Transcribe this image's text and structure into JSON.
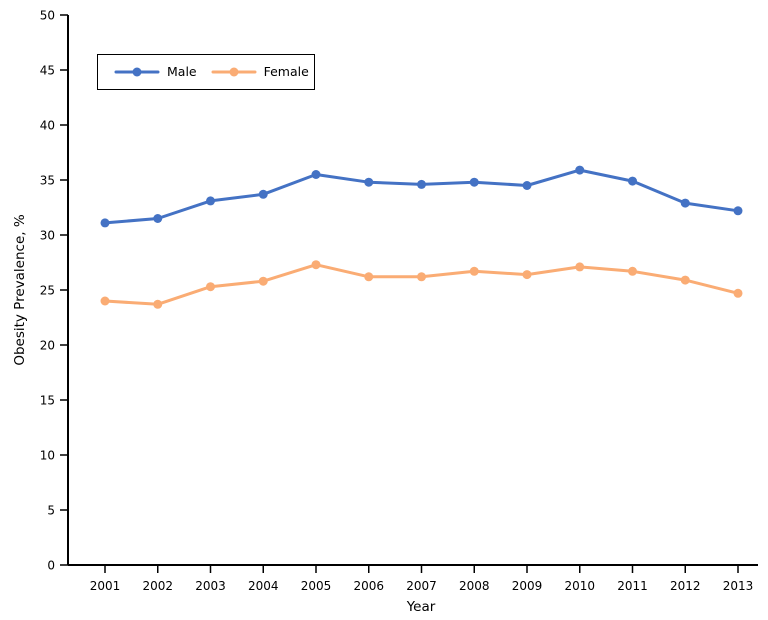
{
  "chart_data": {
    "type": "line",
    "title": "",
    "xlabel": "Year",
    "ylabel": "Obesity Prevalence, %",
    "ylim": [
      0,
      50
    ],
    "ytick_step": 5,
    "grid": false,
    "legend_position": "top-left",
    "categories": [
      "2001",
      "2002",
      "2003",
      "2004",
      "2005",
      "2006",
      "2007",
      "2008",
      "2009",
      "2010",
      "2011",
      "2012",
      "2013"
    ],
    "series": [
      {
        "name": "Male",
        "color": "#4472C4",
        "values": [
          31.1,
          31.5,
          33.1,
          33.7,
          35.5,
          34.8,
          34.6,
          34.8,
          34.5,
          35.9,
          34.9,
          32.9,
          32.2
        ]
      },
      {
        "name": "Female",
        "color": "#FAAC74",
        "values": [
          24.0,
          23.7,
          25.3,
          25.8,
          27.3,
          26.2,
          26.2,
          26.7,
          26.4,
          27.1,
          26.7,
          25.9,
          24.7
        ]
      }
    ]
  }
}
